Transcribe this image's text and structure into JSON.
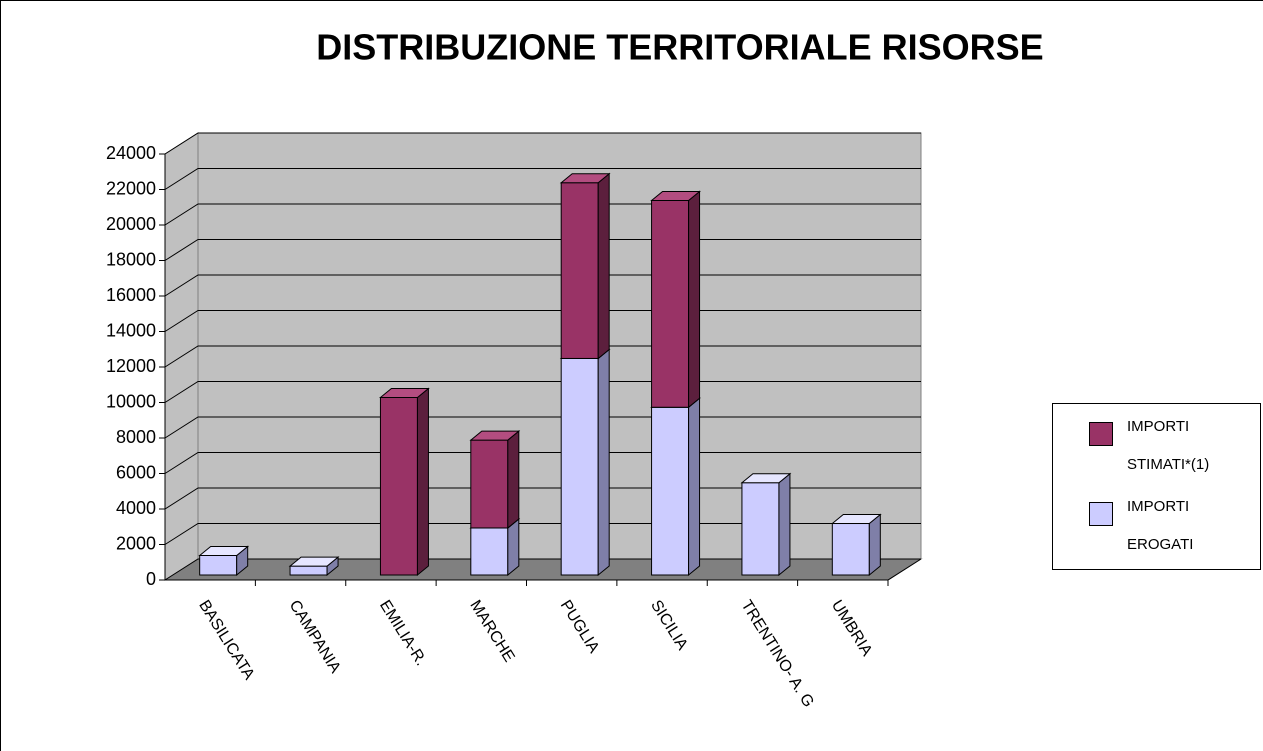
{
  "chart_data": {
    "type": "bar",
    "stacked": true,
    "title": "DISTRIBUZIONE TERRITORIALE RISORSE",
    "categories": [
      "BASILICATA",
      "CAMPANIA",
      "EMILIA-R.",
      "MARCHE",
      "PUGLIA",
      "SICILIA",
      "TRENTINO- A. G",
      "UMBRIA"
    ],
    "series": [
      {
        "name": "IMPORTI EROGATI",
        "color": "#ccccff",
        "values": [
          1100,
          500,
          0,
          2650,
          12200,
          9450,
          5200,
          2900
        ]
      },
      {
        "name": "IMPORTI STIMATI*(1)",
        "color": "#993366",
        "values": [
          0,
          0,
          10000,
          4950,
          9900,
          11650,
          0,
          0
        ]
      }
    ],
    "ylim": [
      0,
      24000
    ],
    "yticks": [
      0,
      2000,
      4000,
      6000,
      8000,
      10000,
      12000,
      14000,
      16000,
      18000,
      20000,
      22000,
      24000
    ],
    "grid": true,
    "legend": "right"
  }
}
